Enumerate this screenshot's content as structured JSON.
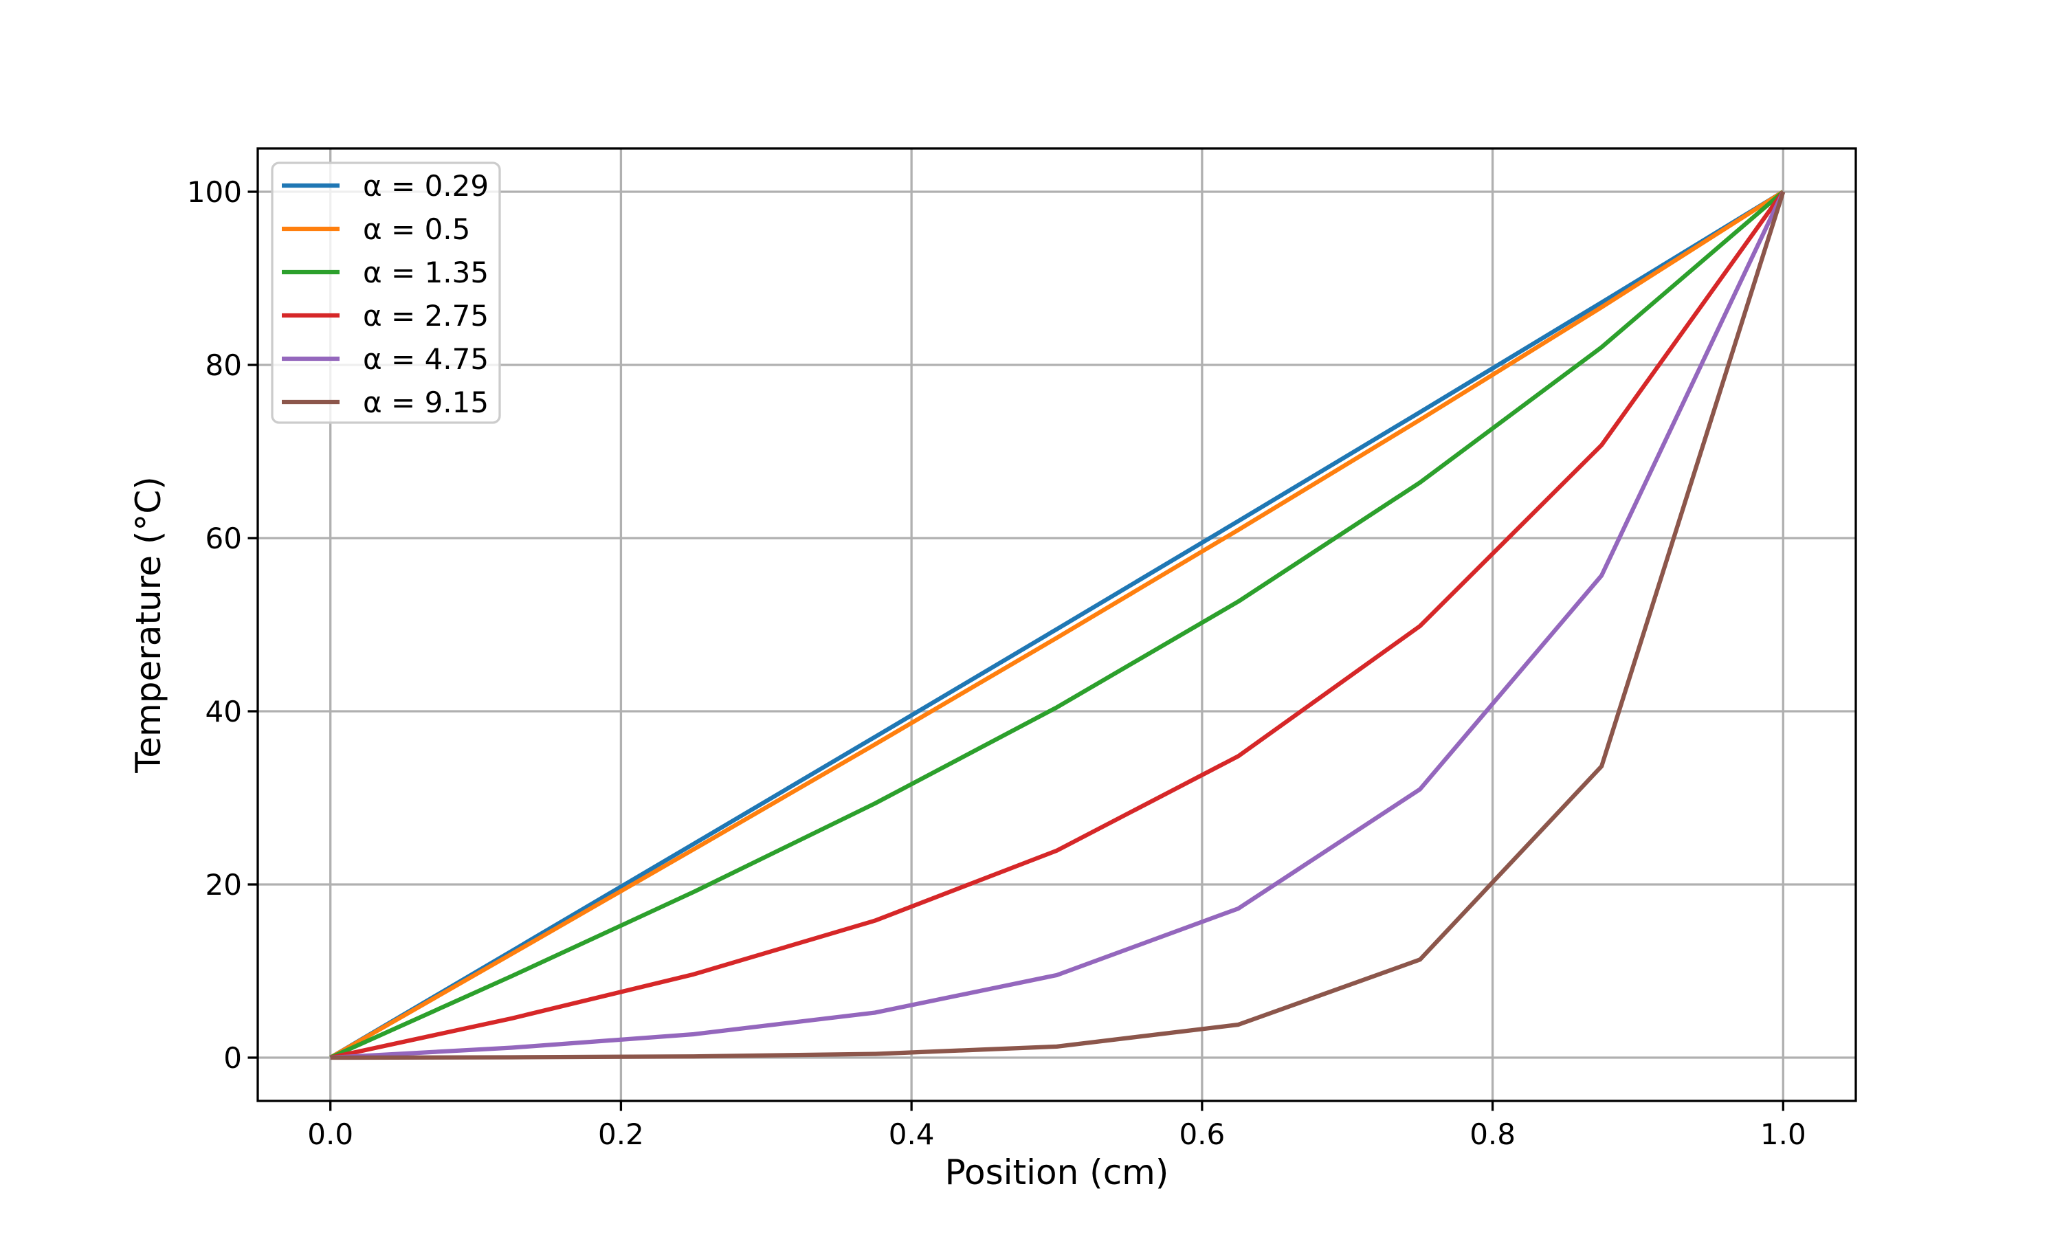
{
  "figure": {
    "background": "#ffffff",
    "title": ""
  },
  "chart_data": {
    "type": "line",
    "title": "",
    "xlabel": "Position (cm)",
    "ylabel": "Temperature (°C)",
    "xlim": [
      -0.05,
      1.05
    ],
    "ylim": [
      -5,
      105
    ],
    "xticks": [
      "0.0",
      "0.2",
      "0.4",
      "0.6",
      "0.8",
      "1.0"
    ],
    "yticks": [
      "0",
      "20",
      "40",
      "60",
      "80",
      "100"
    ],
    "grid": true,
    "grid_color": "#b0b0b0",
    "spine_color": "#000000",
    "text_color": "#000000",
    "legend_position": "upper left",
    "x": [
      0,
      0.125,
      0.25,
      0.375,
      0.5,
      0.625,
      0.75,
      0.875,
      1.0
    ],
    "series": [
      {
        "name": "α = 0.29",
        "color": "#1f77b4",
        "values": [
          0,
          12.33,
          24.68,
          37.05,
          49.48,
          61.97,
          74.54,
          87.21,
          100
        ]
      },
      {
        "name": "α = 0.5",
        "color": "#ff7f0e",
        "values": [
          0,
          12.0,
          24.05,
          36.19,
          48.48,
          60.95,
          73.66,
          86.66,
          100
        ]
      },
      {
        "name": "α = 1.35",
        "color": "#2ca02c",
        "values": [
          0,
          9.43,
          19.13,
          29.37,
          40.45,
          52.68,
          66.42,
          82.04,
          100
        ]
      },
      {
        "name": "α = 2.75",
        "color": "#d62728",
        "values": [
          0,
          4.54,
          9.62,
          15.83,
          23.91,
          34.82,
          49.84,
          70.74,
          100
        ]
      },
      {
        "name": "α = 4.75",
        "color": "#9467bd",
        "values": [
          0,
          1.15,
          2.7,
          5.2,
          9.53,
          17.22,
          30.99,
          55.68,
          100
        ]
      },
      {
        "name": "α = 9.15",
        "color": "#8c564b",
        "values": [
          0,
          0.04,
          0.14,
          0.43,
          1.28,
          3.81,
          11.32,
          33.65,
          100
        ]
      }
    ]
  }
}
